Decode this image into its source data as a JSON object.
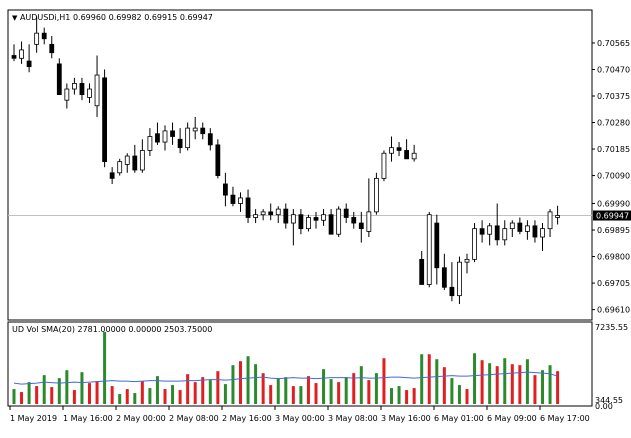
{
  "main_panel": {
    "header_arrow": "▼",
    "symbol": "AUDUSDi,H1",
    "ohlc": "0.69960 0.69982 0.69915 0.69947",
    "price_ticks": [
      "0.70565",
      "0.70470",
      "0.70375",
      "0.70280",
      "0.70185",
      "0.70090",
      "0.69990",
      "0.69895",
      "0.69800",
      "0.69705",
      "0.69610"
    ],
    "current_price_label": "0.69947"
  },
  "volume_panel": {
    "label": "UD Vol SMA(20) 2781.00000 0.00000 2503.75000",
    "ticks": [
      "7235.55",
      "344.55"
    ],
    "zero_label": "0.00"
  },
  "time_axis": {
    "labels": [
      "1 May 2019",
      "1 May 16:00",
      "2 May 00:00",
      "2 May 08:00",
      "2 May 16:00",
      "3 May 00:00",
      "3 May 08:00",
      "3 May 16:00",
      "6 May 01:00",
      "6 May 09:00",
      "6 May 17:00"
    ]
  },
  "colors": {
    "background": "#ffffff",
    "grid": "#c0c0c0",
    "bull_candle": "#ffffff",
    "bear_candle": "#000000",
    "candle_outline": "#000000",
    "green_tick": "#00cc00",
    "vol_up": "#2b8a2b",
    "vol_down": "#e02020",
    "sma_line": "#4169e1"
  },
  "chart_data": {
    "type": "candlestick",
    "price_range": [
      0.6958,
      0.7064
    ],
    "candles": [
      {
        "o": 0.7052,
        "h": 0.7056,
        "l": 0.705,
        "c": 0.7051
      },
      {
        "o": 0.7051,
        "h": 0.7057,
        "l": 0.7049,
        "c": 0.7054
      },
      {
        "o": 0.705,
        "h": 0.7056,
        "l": 0.7046,
        "c": 0.7048
      },
      {
        "o": 0.7056,
        "h": 0.7066,
        "l": 0.7053,
        "c": 0.706
      },
      {
        "o": 0.706,
        "h": 0.7062,
        "l": 0.7056,
        "c": 0.7058
      },
      {
        "o": 0.7056,
        "h": 0.7059,
        "l": 0.7051,
        "c": 0.7053
      },
      {
        "o": 0.7049,
        "h": 0.7051,
        "l": 0.7038,
        "c": 0.7038
      },
      {
        "o": 0.7036,
        "h": 0.7042,
        "l": 0.7033,
        "c": 0.704
      },
      {
        "o": 0.704,
        "h": 0.7044,
        "l": 0.7038,
        "c": 0.7042
      },
      {
        "o": 0.7042,
        "h": 0.7044,
        "l": 0.7036,
        "c": 0.7038
      },
      {
        "o": 0.7037,
        "h": 0.7042,
        "l": 0.7035,
        "c": 0.704
      },
      {
        "o": 0.7034,
        "h": 0.7052,
        "l": 0.703,
        "c": 0.7045
      },
      {
        "o": 0.7044,
        "h": 0.7047,
        "l": 0.7012,
        "c": 0.7014
      },
      {
        "o": 0.701,
        "h": 0.7012,
        "l": 0.7006,
        "c": 0.7008
      },
      {
        "o": 0.701,
        "h": 0.7015,
        "l": 0.7009,
        "c": 0.7014
      },
      {
        "o": 0.7013,
        "h": 0.7017,
        "l": 0.701,
        "c": 0.7016
      },
      {
        "o": 0.7016,
        "h": 0.702,
        "l": 0.701,
        "c": 0.7011
      },
      {
        "o": 0.7011,
        "h": 0.7022,
        "l": 0.701,
        "c": 0.7018
      },
      {
        "o": 0.7018,
        "h": 0.7026,
        "l": 0.7016,
        "c": 0.7023
      },
      {
        "o": 0.7024,
        "h": 0.7028,
        "l": 0.702,
        "c": 0.7021
      },
      {
        "o": 0.7021,
        "h": 0.7027,
        "l": 0.7018,
        "c": 0.7025
      },
      {
        "o": 0.7025,
        "h": 0.7028,
        "l": 0.702,
        "c": 0.7023
      },
      {
        "o": 0.7022,
        "h": 0.7026,
        "l": 0.7017,
        "c": 0.7019
      },
      {
        "o": 0.7019,
        "h": 0.7028,
        "l": 0.7018,
        "c": 0.7026
      },
      {
        "o": 0.7025,
        "h": 0.703,
        "l": 0.7022,
        "c": 0.7026
      },
      {
        "o": 0.7026,
        "h": 0.7028,
        "l": 0.7022,
        "c": 0.7024
      },
      {
        "o": 0.7024,
        "h": 0.7026,
        "l": 0.7018,
        "c": 0.702
      },
      {
        "o": 0.702,
        "h": 0.7022,
        "l": 0.7008,
        "c": 0.7009
      },
      {
        "o": 0.7006,
        "h": 0.701,
        "l": 0.6998,
        "c": 0.7002
      },
      {
        "o": 0.7002,
        "h": 0.7005,
        "l": 0.6998,
        "c": 0.6999
      },
      {
        "o": 0.6999,
        "h": 0.7003,
        "l": 0.6996,
        "c": 0.7001
      },
      {
        "o": 0.7001,
        "h": 0.7004,
        "l": 0.6992,
        "c": 0.6994
      },
      {
        "o": 0.6994,
        "h": 0.6997,
        "l": 0.6992,
        "c": 0.6995
      },
      {
        "o": 0.6995,
        "h": 0.6997,
        "l": 0.6993,
        "c": 0.6996
      },
      {
        "o": 0.6996,
        "h": 0.6999,
        "l": 0.6993,
        "c": 0.6995
      },
      {
        "o": 0.6995,
        "h": 0.6998,
        "l": 0.6992,
        "c": 0.6997
      },
      {
        "o": 0.6997,
        "h": 0.6999,
        "l": 0.699,
        "c": 0.6992
      },
      {
        "o": 0.6992,
        "h": 0.6997,
        "l": 0.6984,
        "c": 0.6995
      },
      {
        "o": 0.6995,
        "h": 0.6997,
        "l": 0.6988,
        "c": 0.699
      },
      {
        "o": 0.699,
        "h": 0.6995,
        "l": 0.6989,
        "c": 0.6994
      },
      {
        "o": 0.6994,
        "h": 0.6996,
        "l": 0.699,
        "c": 0.6993
      },
      {
        "o": 0.6993,
        "h": 0.6997,
        "l": 0.6991,
        "c": 0.6995
      },
      {
        "o": 0.6995,
        "h": 0.6997,
        "l": 0.6988,
        "c": 0.6988
      },
      {
        "o": 0.6988,
        "h": 0.6998,
        "l": 0.6987,
        "c": 0.6997
      },
      {
        "o": 0.6997,
        "h": 0.6999,
        "l": 0.6992,
        "c": 0.6994
      },
      {
        "o": 0.6994,
        "h": 0.6996,
        "l": 0.699,
        "c": 0.6992
      },
      {
        "o": 0.6992,
        "h": 0.6996,
        "l": 0.6985,
        "c": 0.699
      },
      {
        "o": 0.6989,
        "h": 0.7008,
        "l": 0.6987,
        "c": 0.6996
      },
      {
        "o": 0.6996,
        "h": 0.701,
        "l": 0.6995,
        "c": 0.7008
      },
      {
        "o": 0.7008,
        "h": 0.7018,
        "l": 0.7007,
        "c": 0.7017
      },
      {
        "o": 0.7017,
        "h": 0.7023,
        "l": 0.7014,
        "c": 0.7019
      },
      {
        "o": 0.7019,
        "h": 0.7021,
        "l": 0.7016,
        "c": 0.7018
      },
      {
        "o": 0.7018,
        "h": 0.7022,
        "l": 0.7015,
        "c": 0.7015
      },
      {
        "o": 0.7015,
        "h": 0.702,
        "l": 0.7014,
        "c": 0.7017
      },
      {
        "o": 0.6979,
        "h": 0.6982,
        "l": 0.697,
        "c": 0.697
      },
      {
        "o": 0.697,
        "h": 0.6996,
        "l": 0.6969,
        "c": 0.6995
      },
      {
        "o": 0.6992,
        "h": 0.6995,
        "l": 0.697,
        "c": 0.6976
      },
      {
        "o": 0.6976,
        "h": 0.6981,
        "l": 0.6968,
        "c": 0.6969
      },
      {
        "o": 0.6969,
        "h": 0.6978,
        "l": 0.6964,
        "c": 0.6966
      },
      {
        "o": 0.6966,
        "h": 0.698,
        "l": 0.6963,
        "c": 0.6978
      },
      {
        "o": 0.6978,
        "h": 0.6981,
        "l": 0.6974,
        "c": 0.6979
      },
      {
        "o": 0.6979,
        "h": 0.6992,
        "l": 0.6978,
        "c": 0.699
      },
      {
        "o": 0.699,
        "h": 0.6993,
        "l": 0.6985,
        "c": 0.6988
      },
      {
        "o": 0.6988,
        "h": 0.6992,
        "l": 0.6984,
        "c": 0.6991
      },
      {
        "o": 0.6991,
        "h": 0.6999,
        "l": 0.6984,
        "c": 0.6986
      },
      {
        "o": 0.6986,
        "h": 0.6993,
        "l": 0.6984,
        "c": 0.699
      },
      {
        "o": 0.699,
        "h": 0.6993,
        "l": 0.6987,
        "c": 0.6992
      },
      {
        "o": 0.6992,
        "h": 0.6994,
        "l": 0.6988,
        "c": 0.6989
      },
      {
        "o": 0.6989,
        "h": 0.6993,
        "l": 0.6986,
        "c": 0.6991
      },
      {
        "o": 0.6991,
        "h": 0.6993,
        "l": 0.6985,
        "c": 0.6987
      },
      {
        "o": 0.6987,
        "h": 0.6992,
        "l": 0.6982,
        "c": 0.699
      },
      {
        "o": 0.699,
        "h": 0.6997,
        "l": 0.6987,
        "c": 0.6996
      },
      {
        "o": 0.6994,
        "h": 0.69982,
        "l": 0.69915,
        "c": 0.69947
      }
    ],
    "volume_up": [
      1,
      0,
      1,
      0,
      1,
      0,
      1,
      1,
      0,
      1,
      0,
      0,
      1,
      0,
      1,
      0,
      1,
      0,
      1,
      1,
      0,
      1,
      0,
      0,
      0,
      0,
      1,
      0,
      1,
      1,
      0,
      1,
      1,
      0,
      0,
      1,
      1,
      0,
      1,
      0,
      0,
      1,
      1,
      0,
      1,
      0,
      1,
      0,
      1,
      0,
      1,
      1,
      0,
      0,
      1,
      0,
      1,
      0,
      1,
      1,
      0,
      1,
      0,
      1,
      0,
      1,
      0,
      0,
      1,
      0,
      1,
      1,
      0
    ],
    "volume": [
      1500,
      1200,
      2200,
      1800,
      2900,
      1700,
      2600,
      3400,
      1400,
      3200,
      2100,
      2300,
      7235,
      1800,
      1000,
      1500,
      1100,
      2300,
      1600,
      2800,
      1500,
      1900,
      1400,
      3000,
      2200,
      2700,
      2400,
      3300,
      2000,
      3900,
      4300,
      4800,
      4000,
      3100,
      1900,
      2600,
      2700,
      1800,
      1800,
      2800,
      2100,
      3500,
      2500,
      2200,
      2700,
      3100,
      3800,
      2400,
      3100,
      4600,
      1600,
      1800,
      1400,
      1600,
      5000,
      5000,
      4500,
      3700,
      2600,
      1900,
      1500,
      5100,
      4400,
      4100,
      3800,
      4600,
      4000,
      3900,
      4500,
      2900,
      3400,
      3900,
      3300
    ],
    "sma": [
      2100,
      2000,
      2050,
      2100,
      2200,
      2150,
      2100,
      2150,
      2200,
      2150,
      2200,
      2250,
      2300,
      2350,
      2300,
      2300,
      2250,
      2300,
      2350,
      2350,
      2300,
      2300,
      2300,
      2350,
      2350,
      2400,
      2450,
      2450,
      2400,
      2450,
      2550,
      2600,
      2650,
      2700,
      2600,
      2550,
      2600,
      2650,
      2600,
      2600,
      2550,
      2600,
      2650,
      2650,
      2650,
      2600,
      2650,
      2600,
      2600,
      2650,
      2700,
      2700,
      2650,
      2600,
      2650,
      2700,
      2750,
      2800,
      2850,
      2800,
      2800,
      2850,
      2900,
      2950,
      3000,
      3050,
      3100,
      3150,
      3200,
      3150,
      3100,
      3050,
      2781
    ],
    "volume_range": [
      0,
      7235.55
    ],
    "price_ticks": [
      0.70565,
      0.7047,
      0.70375,
      0.7028,
      0.70185,
      0.7009,
      0.6999,
      0.69895,
      0.698,
      0.69705,
      0.6961
    ],
    "current_price": 0.69947
  }
}
